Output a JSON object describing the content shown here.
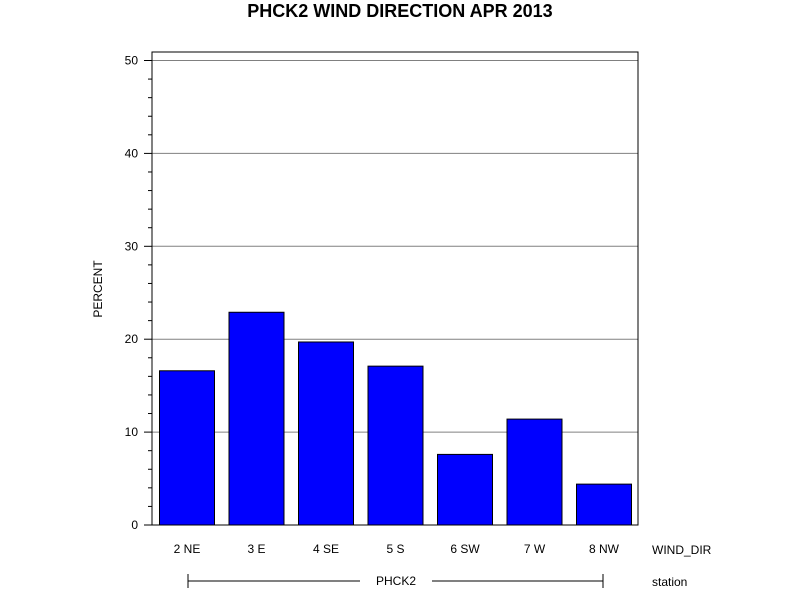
{
  "chart_data": {
    "type": "bar",
    "title": "PHCK2 WIND DIRECTION APR 2013",
    "xlabel": "WIND_DIR",
    "ylabel": "PERCENT",
    "categories": [
      "2 NE",
      "3 E",
      "4 SE",
      "5 S",
      "6 SW",
      "7 W",
      "8 NW"
    ],
    "values": [
      16.6,
      22.9,
      19.7,
      17.1,
      7.6,
      11.4,
      4.4
    ],
    "ylim": [
      0,
      51
    ],
    "yticks": [
      0,
      10,
      20,
      30,
      40,
      50
    ],
    "grid": true,
    "bar_color": "#0000ff",
    "group": {
      "label": "PHCK2",
      "axis_label": "station"
    }
  }
}
